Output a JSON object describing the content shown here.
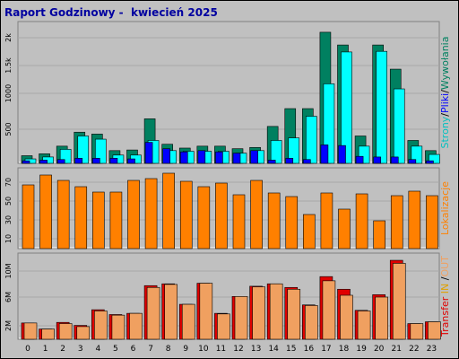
{
  "window": {
    "title": "Raport Godzinowy -  kwiecień 2025"
  },
  "chart_data": [
    {
      "type": "bar",
      "categories": [
        "0",
        "1",
        "2",
        "3",
        "4",
        "5",
        "6",
        "7",
        "8",
        "9",
        "10",
        "11",
        "12",
        "13",
        "14",
        "15",
        "16",
        "17",
        "18",
        "19",
        "20",
        "21",
        "22",
        "23"
      ],
      "y_ticks": [
        "2k",
        "1.5k",
        "1000",
        "500"
      ],
      "ylim": [
        0,
        2200
      ],
      "side_label": [
        "Strony",
        "/",
        "Pliki",
        "/",
        "Wywołania"
      ],
      "series": [
        {
          "name": "Wywołania",
          "color": "#008060",
          "values": [
            120,
            150,
            270,
            490,
            460,
            200,
            210,
            700,
            300,
            240,
            270,
            270,
            230,
            250,
            580,
            860,
            860,
            2060,
            1860,
            430,
            1860,
            1480,
            360,
            200
          ]
        },
        {
          "name": "Pliki",
          "color": "#00ffff",
          "values": [
            70,
            100,
            220,
            430,
            380,
            130,
            130,
            360,
            200,
            190,
            190,
            190,
            160,
            200,
            360,
            400,
            740,
            1250,
            1750,
            270,
            1760,
            1170,
            270,
            140
          ]
        },
        {
          "name": "Strony",
          "color": "#0000ff",
          "values": [
            40,
            50,
            60,
            80,
            80,
            80,
            70,
            330,
            230,
            180,
            200,
            180,
            160,
            200,
            50,
            80,
            60,
            290,
            280,
            110,
            100,
            100,
            60,
            40
          ]
        }
      ]
    },
    {
      "type": "bar",
      "categories": [
        "0",
        "1",
        "2",
        "3",
        "4",
        "5",
        "6",
        "7",
        "8",
        "9",
        "10",
        "11",
        "12",
        "13",
        "14",
        "15",
        "16",
        "17",
        "18",
        "19",
        "20",
        "21",
        "22",
        "23"
      ],
      "y_ticks": [
        "70",
        "50",
        "30",
        "10"
      ],
      "ylim": [
        0,
        88
      ],
      "side_label": [
        "Lokalizacje"
      ],
      "series": [
        {
          "name": "Lokalizacje",
          "color": "#ff8000",
          "values": [
            71,
            82,
            76,
            69,
            63,
            63,
            76,
            78,
            84,
            75,
            69,
            73,
            60,
            76,
            62,
            58,
            38,
            62,
            44,
            61,
            31,
            59,
            64,
            59
          ]
        }
      ]
    },
    {
      "type": "bar",
      "categories": [
        "0",
        "1",
        "2",
        "3",
        "4",
        "5",
        "6",
        "7",
        "8",
        "9",
        "10",
        "11",
        "12",
        "13",
        "14",
        "15",
        "16",
        "17",
        "18",
        "19",
        "20",
        "21",
        "22",
        "23"
      ],
      "y_ticks": [
        "10M",
        "6M",
        "2M"
      ],
      "ylim": [
        0,
        14
      ],
      "side_label": [
        "Transfer",
        " IN ",
        "/",
        "OUT"
      ],
      "series": [
        {
          "name": "Transfer",
          "color": "#e00000",
          "values": [
            2.7,
            1.7,
            2.8,
            2.3,
            4.9,
            4.1,
            4.3,
            8.9,
            9.2,
            5.8,
            9.3,
            4.3,
            7.1,
            8.8,
            9.2,
            8.6,
            5.7,
            10.4,
            8.3,
            4.8,
            7.4,
            13.1,
            2.6,
            2.9
          ]
        },
        {
          "name": "IN",
          "color": "#e0a000",
          "values": [
            0,
            0,
            0,
            0,
            0,
            0,
            0,
            0,
            0,
            0,
            0,
            0,
            0,
            0,
            0,
            0,
            0,
            0,
            0,
            0,
            0,
            0,
            0,
            0
          ]
        },
        {
          "name": "OUT",
          "color": "#f0a060",
          "values": [
            2.7,
            1.7,
            2.6,
            2.1,
            4.7,
            4.0,
            4.3,
            8.6,
            9.1,
            5.8,
            9.3,
            4.2,
            7.1,
            8.7,
            9.2,
            8.3,
            5.6,
            9.7,
            7.3,
            4.7,
            7.0,
            12.6,
            2.6,
            2.9
          ]
        }
      ]
    }
  ],
  "label_colors": {
    "strony": "#00c0c0",
    "pliki": "#0000ff",
    "wywolania": "#008060",
    "lokalizacje": "#ff8000",
    "transfer": "#e00000",
    "in": "#e0a000",
    "out": "#f0a060",
    "slash": "#000000"
  }
}
